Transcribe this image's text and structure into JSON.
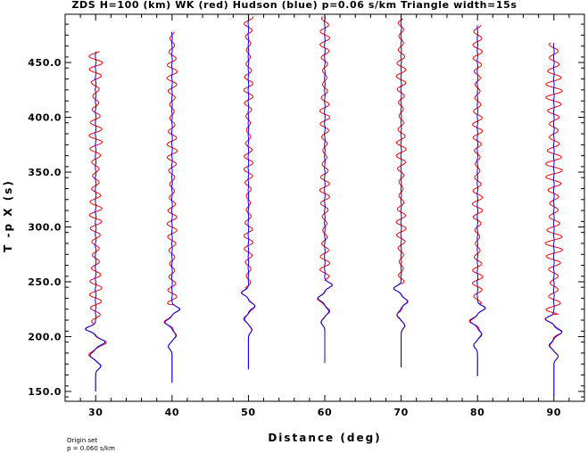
{
  "chart_data": {
    "type": "line",
    "title": "ZDS H=100 (km) WK (red) Hudson (blue) p=0.06 s/km Triangle width=15s",
    "xlabel": "Distance (deg)",
    "ylabel": "T -p X (s)",
    "xlim": [
      26,
      94
    ],
    "ylim": [
      141,
      494
    ],
    "x_ticks": [
      30,
      40,
      50,
      60,
      70,
      80,
      90
    ],
    "y_ticks": [
      150.0,
      200.0,
      250.0,
      300.0,
      350.0,
      400.0,
      450.0
    ],
    "y_tick_labels": [
      "150.0",
      "200.0",
      "250.0",
      "300.0",
      "350.0",
      "400.0",
      "450.0"
    ],
    "series": [
      {
        "name": "WK",
        "color": "#ff0000"
      },
      {
        "name": "Hudson",
        "color": "#0000ff"
      }
    ],
    "traces": [
      {
        "distance": 30,
        "t_start": 150,
        "t_end": 460,
        "onset": 205,
        "amp": 5.0
      },
      {
        "distance": 40,
        "t_start": 158,
        "t_end": 478,
        "onset": 223,
        "amp": 3.8
      },
      {
        "distance": 50,
        "t_start": 170,
        "t_end": 492,
        "onset": 238,
        "amp": 3.4
      },
      {
        "distance": 60,
        "t_start": 176,
        "t_end": 492,
        "onset": 245,
        "amp": 3.6
      },
      {
        "distance": 70,
        "t_start": 172,
        "t_end": 490,
        "onset": 242,
        "amp": 3.6
      },
      {
        "distance": 80,
        "t_start": 164,
        "t_end": 484,
        "onset": 224,
        "amp": 3.8
      },
      {
        "distance": 90,
        "t_start": 146,
        "t_end": 468,
        "onset": 214,
        "amp": 4.2
      }
    ]
  },
  "notes": {
    "line1": "Origin set",
    "line2": "p = 0.060 s/km"
  }
}
